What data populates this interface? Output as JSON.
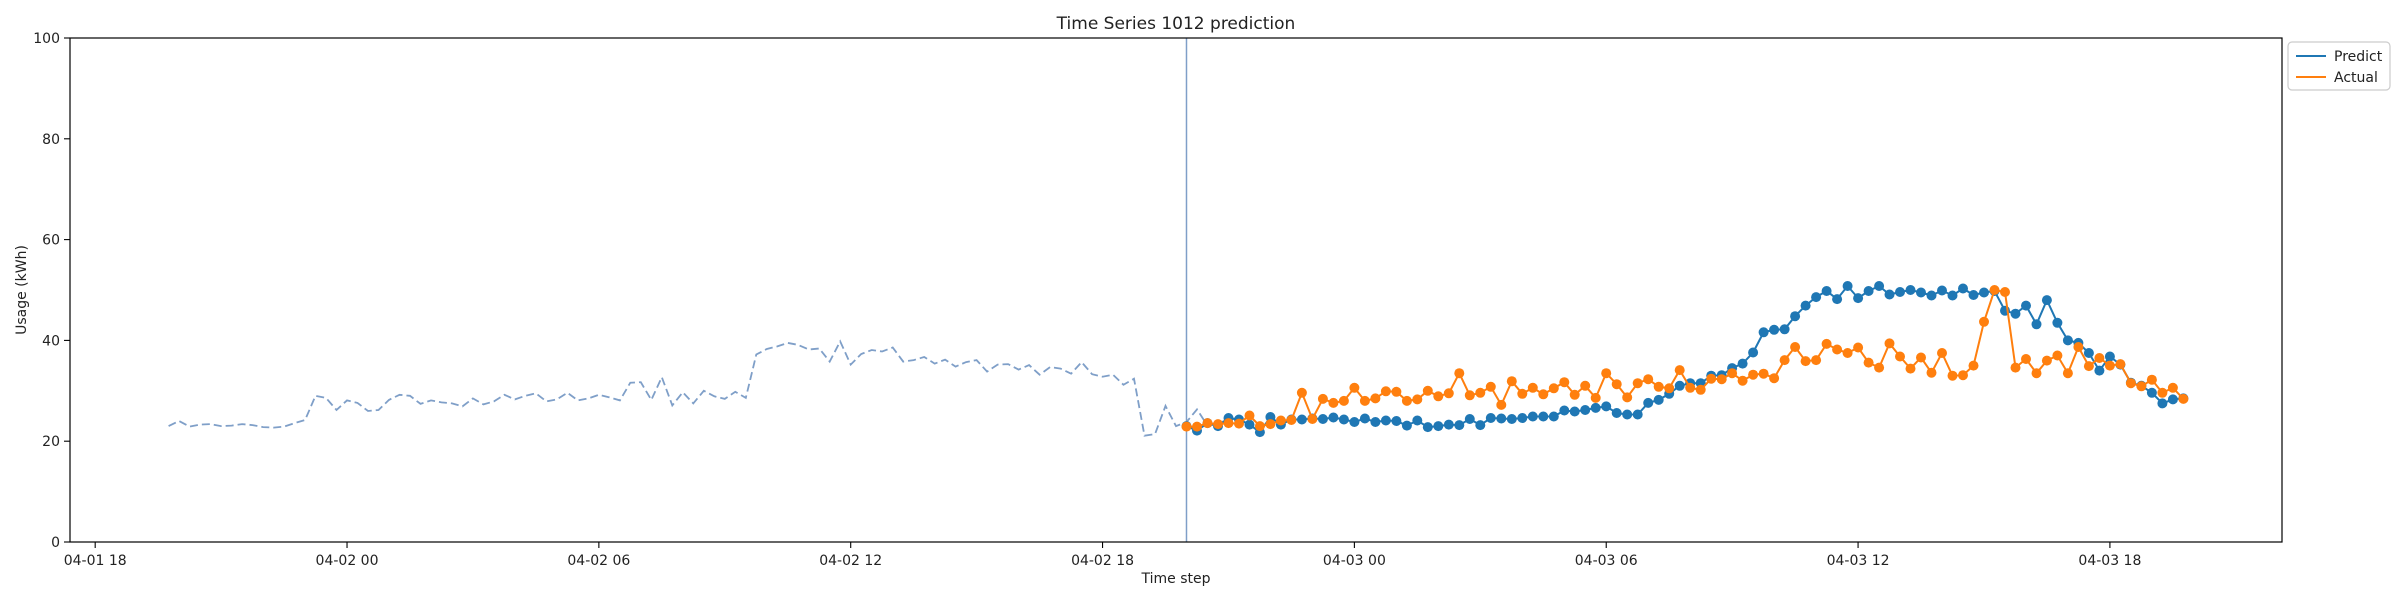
{
  "chart_data": {
    "type": "line",
    "title": "Time Series 1012 prediction",
    "xlabel": "Time step",
    "ylabel": "Usage (kWh)",
    "ylim": [
      0,
      100
    ],
    "yticks": [
      0,
      20,
      40,
      60,
      80,
      100
    ],
    "x_axis": {
      "unit": "hours from 04-01 18:00",
      "xlim": [
        -0.6,
        52.1
      ],
      "ticks": [
        {
          "x": 0,
          "label": "04-01 18"
        },
        {
          "x": 6,
          "label": "04-02 00"
        },
        {
          "x": 12,
          "label": "04-02 06"
        },
        {
          "x": 18,
          "label": "04-02 12"
        },
        {
          "x": 24,
          "label": "04-02 18"
        },
        {
          "x": 30,
          "label": "04-03 00"
        },
        {
          "x": 36,
          "label": "04-03 06"
        },
        {
          "x": 42,
          "label": "04-03 12"
        },
        {
          "x": 48,
          "label": "04-03 18"
        }
      ]
    },
    "forecast_start": 26,
    "grid": false,
    "legend_position": "upper-right-outside",
    "colors": {
      "history": "#7f9fc8",
      "predict": "#1f77b4",
      "actual": "#ff7f0e",
      "vline": "#7f9fc8"
    },
    "history": {
      "x_start": 1.75,
      "step": 0.25,
      "values": [
        23.0,
        24.0,
        22.9,
        23.3,
        23.4,
        23.0,
        23.1,
        23.4,
        23.2,
        22.8,
        22.7,
        22.9,
        23.6,
        24.2,
        29.0,
        28.6,
        26.2,
        28.1,
        27.6,
        26.0,
        26.2,
        28.2,
        29.2,
        29.0,
        27.4,
        28.1,
        27.7,
        27.5,
        26.9,
        28.5,
        27.3,
        27.9,
        29.2,
        28.3,
        29.0,
        29.5,
        27.9,
        28.3,
        29.6,
        28.1,
        28.5,
        29.2,
        28.7,
        28.1,
        31.6,
        31.7,
        28.2,
        32.7,
        27.1,
        29.7,
        27.5,
        30.0,
        28.9,
        28.4,
        29.8,
        28.6,
        37.2,
        38.3,
        38.8,
        39.5,
        39.1,
        38.2,
        38.4,
        35.8,
        39.8,
        35.2,
        37.3,
        38.1,
        37.8,
        38.6,
        35.8,
        36.1,
        36.7,
        35.4,
        36.2,
        34.8,
        35.7,
        36.1,
        33.8,
        35.2,
        35.3,
        34.2,
        35.1,
        33.2,
        34.7,
        34.4,
        33.4,
        35.7,
        33.3,
        32.8,
        33.2,
        31.2,
        32.4,
        21.1,
        21.4,
        27.0,
        23.0,
        23.8,
        26.3,
        23.1,
        23.4,
        24.5,
        24.3
      ]
    },
    "series": [
      {
        "name": "Predict",
        "x_start": 26,
        "step": 0.25,
        "values": [
          23.0,
          22.1,
          23.6,
          23.0,
          24.6,
          24.3,
          23.3,
          21.8,
          24.8,
          23.3,
          24.3,
          24.3,
          24.5,
          24.4,
          24.7,
          24.3,
          23.8,
          24.5,
          23.8,
          24.1,
          24.0,
          23.1,
          24.1,
          22.8,
          23.0,
          23.3,
          23.2,
          24.4,
          23.2,
          24.6,
          24.5,
          24.4,
          24.6,
          24.9,
          24.9,
          24.9,
          26.1,
          25.9,
          26.2,
          26.6,
          26.9,
          25.6,
          25.3,
          25.3,
          27.6,
          28.2,
          29.4,
          31.0,
          31.5,
          31.5,
          33.0,
          33.1,
          34.5,
          35.4,
          37.6,
          41.6,
          42.1,
          42.2,
          44.8,
          46.9,
          48.6,
          49.8,
          48.2,
          50.8,
          48.4,
          49.8,
          50.8,
          49.1,
          49.6,
          50.0,
          49.5,
          48.9,
          49.9,
          48.9,
          50.3,
          49.0,
          49.5,
          49.8,
          45.9,
          45.3,
          46.9,
          43.2,
          48.0,
          43.5,
          40.0,
          39.5,
          37.5,
          34.0,
          36.8,
          35.2,
          31.6,
          31.0,
          29.6,
          27.5,
          28.3,
          28.5
        ]
      },
      {
        "name": "Actual",
        "x_start": 26,
        "step": 0.25,
        "values": [
          22.9,
          22.9,
          23.6,
          23.4,
          23.6,
          23.5,
          25.1,
          23.0,
          23.4,
          24.1,
          24.2,
          29.6,
          24.4,
          28.4,
          27.6,
          28.0,
          30.6,
          28.0,
          28.5,
          29.9,
          29.8,
          28.0,
          28.3,
          30.0,
          28.9,
          29.5,
          33.5,
          29.1,
          29.6,
          30.8,
          27.2,
          31.9,
          29.4,
          30.6,
          29.3,
          30.5,
          31.7,
          29.2,
          31.0,
          28.6,
          33.5,
          31.3,
          28.7,
          31.5,
          32.3,
          30.8,
          30.5,
          34.1,
          30.6,
          30.2,
          32.4,
          32.3,
          33.5,
          32.0,
          33.2,
          33.4,
          32.5,
          36.1,
          38.7,
          35.9,
          36.1,
          39.3,
          38.2,
          37.5,
          38.6,
          35.6,
          34.6,
          39.4,
          36.8,
          34.4,
          36.6,
          33.6,
          37.5,
          33.0,
          33.1,
          35.0,
          43.7,
          50.0,
          49.6,
          34.6,
          36.3,
          33.5,
          36.0,
          37.0,
          33.5,
          38.7,
          34.9,
          36.5,
          35.0,
          35.3,
          31.5,
          30.9,
          32.2,
          29.6,
          30.6,
          28.4
        ]
      }
    ]
  }
}
